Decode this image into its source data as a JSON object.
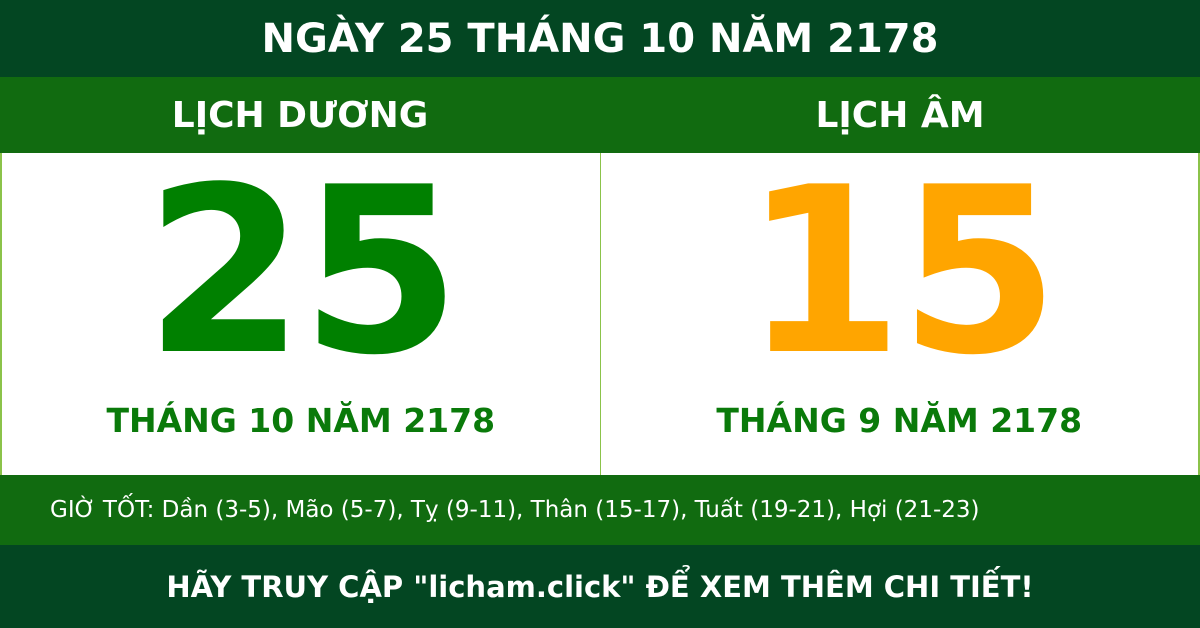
{
  "title": "NGÀY 25 THÁNG 10 NĂM 2178",
  "solar": {
    "heading": "LỊCH DƯƠNG",
    "day": "25",
    "month_year": "THÁNG 10 NĂM 2178",
    "color": "#008000"
  },
  "lunar": {
    "heading": "LỊCH ÂM",
    "day": "15",
    "month_year": "THÁNG 9 NĂM 2178",
    "color": "#ffa500"
  },
  "good_hours": "GIỜ TỐT: Dần (3-5), Mão (5-7), Tỵ (9-11), Thân (15-17), Tuất (19-21), Hợi (21-23)",
  "footer": "HÃY TRUY CẬP \"licham.click\" ĐỂ XEM THÊM CHI TIẾT!"
}
